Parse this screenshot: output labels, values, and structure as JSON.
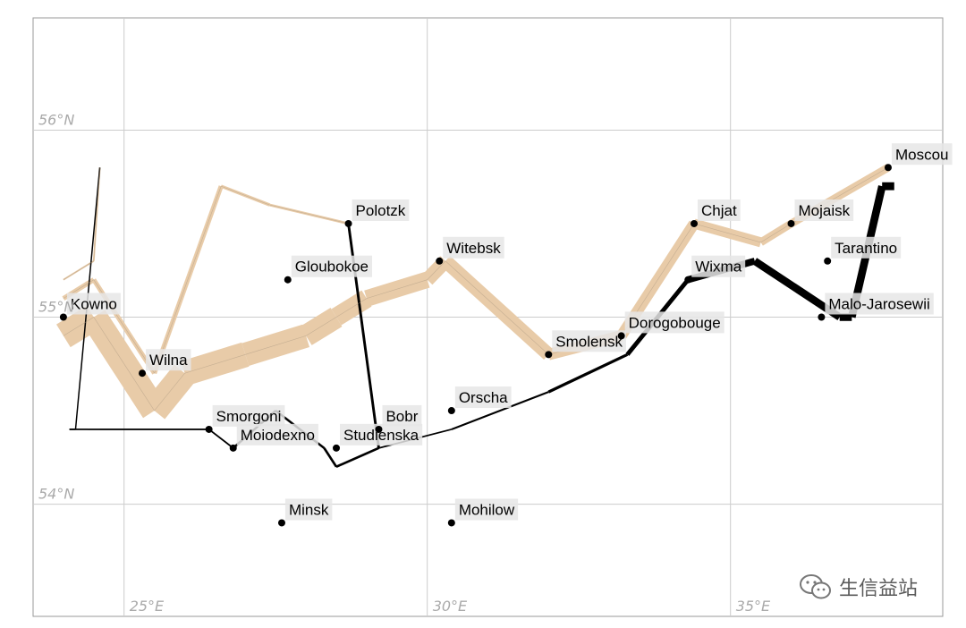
{
  "chart_data": {
    "type": "line",
    "title": "",
    "xlabel": "",
    "ylabel": "",
    "xlim": [
      23.5,
      38.5
    ],
    "ylim": [
      53.4,
      56.6
    ],
    "x_ticks": [
      {
        "value": 25,
        "label": "25°E"
      },
      {
        "value": 30,
        "label": "30°E"
      },
      {
        "value": 35,
        "label": "35°E"
      }
    ],
    "y_ticks": [
      {
        "value": 54,
        "label": "54°N"
      },
      {
        "value": 55,
        "label": "55°N"
      },
      {
        "value": 56,
        "label": "56°N"
      }
    ],
    "grid": true,
    "colors": {
      "advance": "#e8cba8",
      "retreat": "#000000",
      "grid": "#cccccc",
      "label_bg": "#e6e6e6"
    },
    "cities": [
      {
        "name": "Kowno",
        "lon": 24.0,
        "lat": 55.0
      },
      {
        "name": "Wilna",
        "lon": 25.3,
        "lat": 54.7
      },
      {
        "name": "Smorgoni",
        "lon": 26.4,
        "lat": 54.4
      },
      {
        "name": "Moiodexno",
        "lon": 26.8,
        "lat": 54.3
      },
      {
        "name": "Gloubokoe",
        "lon": 27.7,
        "lat": 55.2
      },
      {
        "name": "Minsk",
        "lon": 27.6,
        "lat": 53.9
      },
      {
        "name": "Studienska",
        "lon": 28.5,
        "lat": 54.3
      },
      {
        "name": "Polotzk",
        "lon": 28.7,
        "lat": 55.5
      },
      {
        "name": "Bobr",
        "lon": 29.2,
        "lat": 54.4
      },
      {
        "name": "Witebsk",
        "lon": 30.2,
        "lat": 55.3
      },
      {
        "name": "Orscha",
        "lon": 30.4,
        "lat": 54.5
      },
      {
        "name": "Mohilow",
        "lon": 30.4,
        "lat": 53.9
      },
      {
        "name": "Smolensk",
        "lon": 32.0,
        "lat": 54.8
      },
      {
        "name": "Dorogobouge",
        "lon": 33.2,
        "lat": 54.9
      },
      {
        "name": "Wixma",
        "lon": 34.3,
        "lat": 55.2
      },
      {
        "name": "Chjat",
        "lon": 34.4,
        "lat": 55.5
      },
      {
        "name": "Mojaisk",
        "lon": 36.0,
        "lat": 55.5
      },
      {
        "name": "Moscou",
        "lon": 37.6,
        "lat": 55.8
      },
      {
        "name": "Tarantino",
        "lon": 36.6,
        "lat": 55.3
      },
      {
        "name": "Malo-Jarosewii",
        "lon": 36.5,
        "lat": 55.0
      }
    ],
    "series": [
      {
        "direction": "A",
        "group": 1,
        "color": "#e8cba8",
        "points": [
          [
            24.0,
            54.9,
            340000
          ],
          [
            24.5,
            55.0,
            340000
          ],
          [
            25.5,
            54.5,
            340000
          ],
          [
            26.0,
            54.7,
            320000
          ],
          [
            27.0,
            54.8,
            300000
          ],
          [
            28.0,
            54.9,
            280000
          ],
          [
            28.5,
            55.0,
            240000
          ],
          [
            29.0,
            55.1,
            210000
          ],
          [
            30.0,
            55.2,
            180000
          ],
          [
            30.3,
            55.3,
            175000
          ],
          [
            32.0,
            54.8,
            145000
          ],
          [
            33.2,
            54.9,
            140000
          ],
          [
            34.4,
            55.5,
            127100
          ],
          [
            35.5,
            55.4,
            100000
          ],
          [
            36.0,
            55.5,
            100000
          ],
          [
            37.6,
            55.8,
            100000
          ]
        ]
      },
      {
        "direction": "R",
        "group": 1,
        "color": "#000000",
        "points": [
          [
            37.7,
            55.7,
            100000
          ],
          [
            37.5,
            55.7,
            98000
          ],
          [
            37.0,
            55.0,
            97000
          ],
          [
            36.8,
            55.0,
            96000
          ],
          [
            35.4,
            55.3,
            87000
          ],
          [
            34.3,
            55.2,
            55000
          ],
          [
            33.3,
            54.8,
            37000
          ],
          [
            32.0,
            54.6,
            24000
          ],
          [
            30.4,
            54.4,
            20000
          ],
          [
            29.2,
            54.3,
            20000
          ],
          [
            28.5,
            54.2,
            20000
          ],
          [
            28.3,
            54.3,
            20000
          ],
          [
            27.5,
            54.5,
            20000
          ],
          [
            26.8,
            54.3,
            12000
          ],
          [
            26.4,
            54.4,
            14000
          ],
          [
            25.0,
            54.4,
            8000
          ],
          [
            24.4,
            54.4,
            4000
          ],
          [
            24.2,
            54.4,
            4000
          ],
          [
            24.1,
            54.4,
            4000
          ]
        ]
      },
      {
        "direction": "A",
        "group": 2,
        "color": "#e8cba8",
        "points": [
          [
            24.0,
            55.1,
            60000
          ],
          [
            24.5,
            55.2,
            60000
          ],
          [
            25.5,
            54.7,
            60000
          ],
          [
            26.6,
            55.7,
            40000
          ],
          [
            27.4,
            55.6,
            33000
          ],
          [
            28.7,
            55.5,
            33000
          ]
        ]
      },
      {
        "direction": "R",
        "group": 2,
        "color": "#000000",
        "points": [
          [
            28.7,
            55.5,
            33000
          ],
          [
            29.2,
            54.3,
            30000
          ],
          [
            28.5,
            54.2,
            30000
          ],
          [
            28.3,
            54.3,
            28000
          ],
          [
            27.5,
            54.5,
            28000
          ],
          [
            26.8,
            54.3,
            20000
          ],
          [
            26.4,
            54.4,
            18000
          ],
          [
            24.6,
            54.4,
            6000
          ],
          [
            24.4,
            54.4,
            6000
          ],
          [
            24.2,
            54.4,
            6000
          ],
          [
            24.1,
            54.4,
            6000
          ]
        ]
      },
      {
        "direction": "A",
        "group": 3,
        "color": "#e8cba8",
        "points": [
          [
            24.0,
            55.2,
            22000
          ],
          [
            24.5,
            55.3,
            22000
          ],
          [
            24.6,
            55.8,
            6000
          ]
        ]
      },
      {
        "direction": "R",
        "group": 3,
        "color": "#000000",
        "points": [
          [
            24.6,
            55.8,
            6000
          ],
          [
            24.2,
            54.4,
            6000
          ],
          [
            24.1,
            54.4,
            6000
          ]
        ]
      }
    ]
  },
  "watermark": {
    "text": "生信益站",
    "icon": "wechat-icon"
  }
}
